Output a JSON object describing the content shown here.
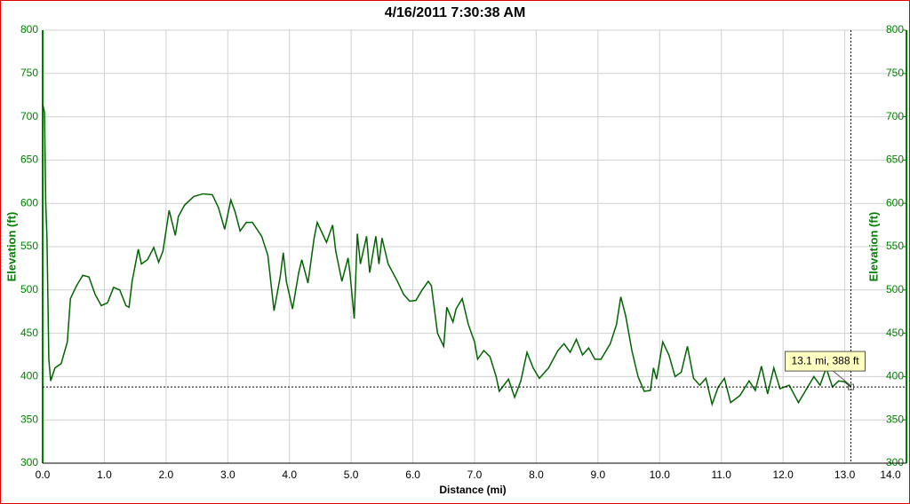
{
  "chart_data": {
    "type": "line",
    "title": "4/16/2011 7:30:38 AM",
    "x_label": "Distance (mi)",
    "y_label": "Elevation (ft)",
    "y2_label": "Elevation (ft)",
    "xlim": [
      0,
      14
    ],
    "ylim": [
      300,
      800
    ],
    "y2lim": [
      300,
      800
    ],
    "xticks": [
      {
        "value": 0,
        "label": "0.0"
      },
      {
        "value": 1,
        "label": "1.0"
      },
      {
        "value": 2,
        "label": "2.0"
      },
      {
        "value": 3,
        "label": "3.0"
      },
      {
        "value": 4,
        "label": "4.0"
      },
      {
        "value": 5,
        "label": "5.0"
      },
      {
        "value": 6,
        "label": "6.0"
      },
      {
        "value": 7,
        "label": "7.0"
      },
      {
        "value": 8,
        "label": "8.0"
      },
      {
        "value": 9,
        "label": "9.0"
      },
      {
        "value": 10,
        "label": "10.0"
      },
      {
        "value": 11,
        "label": "11.0"
      },
      {
        "value": 12,
        "label": "12.0"
      },
      {
        "value": 13,
        "label": "13.0"
      },
      {
        "value": 14,
        "label": "14.0"
      }
    ],
    "yticks": [
      300,
      350,
      400,
      450,
      500,
      550,
      600,
      650,
      700,
      750,
      800
    ],
    "y2ticks": [
      300,
      350,
      400,
      450,
      500,
      550,
      600,
      650,
      700,
      750,
      800
    ],
    "grid": true,
    "x": [
      0,
      0.03,
      0.05,
      0.07,
      0.1,
      0.13,
      0.2,
      0.3,
      0.4,
      0.45,
      0.55,
      0.65,
      0.75,
      0.85,
      0.95,
      1.05,
      1.15,
      1.25,
      1.35,
      1.4,
      1.45,
      1.55,
      1.6,
      1.7,
      1.8,
      1.88,
      1.95,
      2.05,
      2.15,
      2.2,
      2.3,
      2.45,
      2.6,
      2.75,
      2.85,
      2.95,
      3.05,
      3.12,
      3.2,
      3.3,
      3.4,
      3.55,
      3.65,
      3.75,
      3.85,
      3.9,
      3.95,
      4.05,
      4.15,
      4.2,
      4.3,
      4.4,
      4.45,
      4.6,
      4.7,
      4.75,
      4.85,
      4.95,
      4.98,
      5.05,
      5.1,
      5.15,
      5.25,
      5.3,
      5.4,
      5.45,
      5.5,
      5.6,
      5.75,
      5.85,
      5.95,
      6.05,
      6.15,
      6.25,
      6.3,
      6.4,
      6.5,
      6.55,
      6.65,
      6.7,
      6.8,
      6.9,
      7.0,
      7.05,
      7.15,
      7.25,
      7.35,
      7.4,
      7.55,
      7.65,
      7.75,
      7.85,
      7.95,
      8.05,
      8.2,
      8.35,
      8.45,
      8.55,
      8.65,
      8.75,
      8.85,
      8.95,
      9.05,
      9.2,
      9.3,
      9.37,
      9.45,
      9.55,
      9.65,
      9.75,
      9.85,
      9.9,
      9.95,
      10.05,
      10.15,
      10.25,
      10.35,
      10.45,
      10.55,
      10.65,
      10.75,
      10.85,
      10.95,
      11.05,
      11.15,
      11.3,
      11.45,
      11.55,
      11.65,
      11.75,
      11.85,
      11.95,
      12.1,
      12.25,
      12.35,
      12.5,
      12.6,
      12.7,
      12.8,
      12.9,
      13.0,
      13.1
    ],
    "series": [
      {
        "color": "#006400",
        "values": [
          715,
          705,
          600,
          560,
          420,
          395,
          410,
          415,
          440,
          490,
          505,
          517,
          515,
          495,
          482,
          485,
          503,
          500,
          482,
          480,
          510,
          547,
          530,
          535,
          549,
          532,
          545,
          592,
          563,
          585,
          598,
          608,
          611,
          610,
          595,
          570,
          604,
          590,
          568,
          578,
          578,
          562,
          540,
          476,
          515,
          543,
          510,
          478,
          520,
          535,
          508,
          560,
          578,
          555,
          575,
          545,
          510,
          537,
          520,
          467,
          565,
          530,
          562,
          520,
          562,
          530,
          560,
          530,
          510,
          495,
          487,
          488,
          500,
          510,
          505,
          450,
          435,
          480,
          463,
          478,
          490,
          460,
          440,
          420,
          430,
          423,
          400,
          383,
          397,
          376,
          395,
          428,
          410,
          398,
          410,
          430,
          438,
          428,
          443,
          425,
          433,
          420,
          420,
          438,
          460,
          492,
          470,
          430,
          400,
          383,
          384,
          410,
          397,
          440,
          425,
          400,
          405,
          435,
          398,
          390,
          398,
          368,
          388,
          398,
          370,
          378,
          395,
          384,
          412,
          380,
          410,
          386,
          390,
          370,
          382,
          400,
          390,
          410,
          388,
          395,
          394,
          388
        ]
      }
    ],
    "cursor": {
      "x": 13.1,
      "y": 388,
      "label": "13.1 mi, 388 ft"
    }
  }
}
